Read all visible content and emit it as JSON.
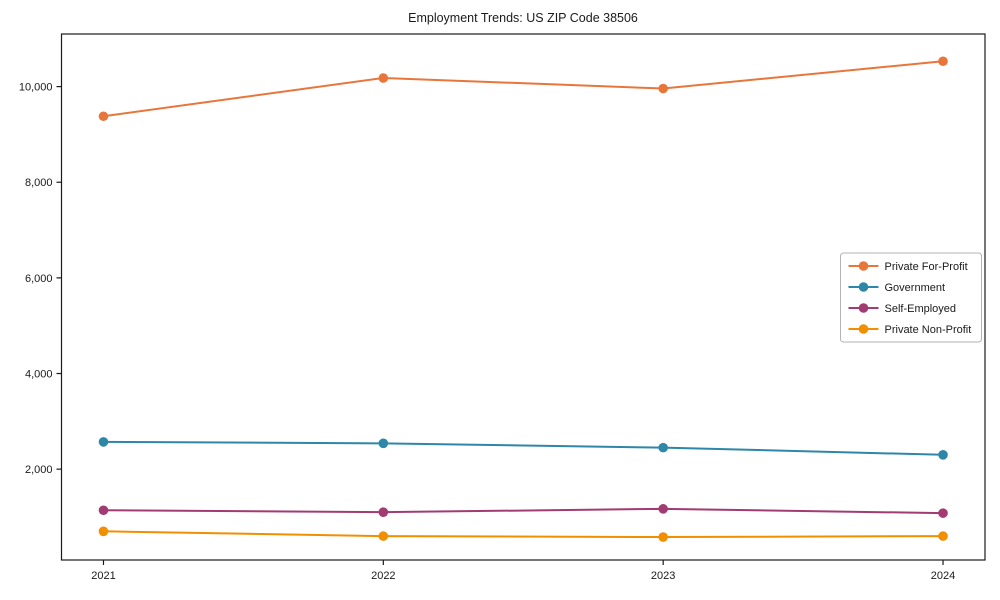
{
  "chart_data": {
    "type": "line",
    "title": "Employment Trends: US ZIP Code 38506",
    "xlabel": "",
    "ylabel": "",
    "categories": [
      "2021",
      "2022",
      "2023",
      "2024"
    ],
    "series": [
      {
        "name": "Private For-Profit",
        "color": "#E8763B",
        "values": [
          9380,
          10180,
          9960,
          10530
        ]
      },
      {
        "name": "Government",
        "color": "#2E86A8",
        "values": [
          2570,
          2540,
          2450,
          2300
        ]
      },
      {
        "name": "Self-Employed",
        "color": "#A23B72",
        "values": [
          1140,
          1100,
          1170,
          1080
        ]
      },
      {
        "name": "Private Non-Profit",
        "color": "#F18F01",
        "values": [
          700,
          600,
          580,
          600
        ]
      }
    ],
    "yticks": [
      2000,
      4000,
      6000,
      8000,
      10000
    ],
    "ytick_labels": [
      "2,000",
      "4,000",
      "6,000",
      "8,000",
      "10,000"
    ],
    "ylim": [
      100,
      11100
    ],
    "grid": false,
    "legend_position": "center-right",
    "frame_color": "#1a1a1a",
    "marker": "circle",
    "line_width": 2
  }
}
